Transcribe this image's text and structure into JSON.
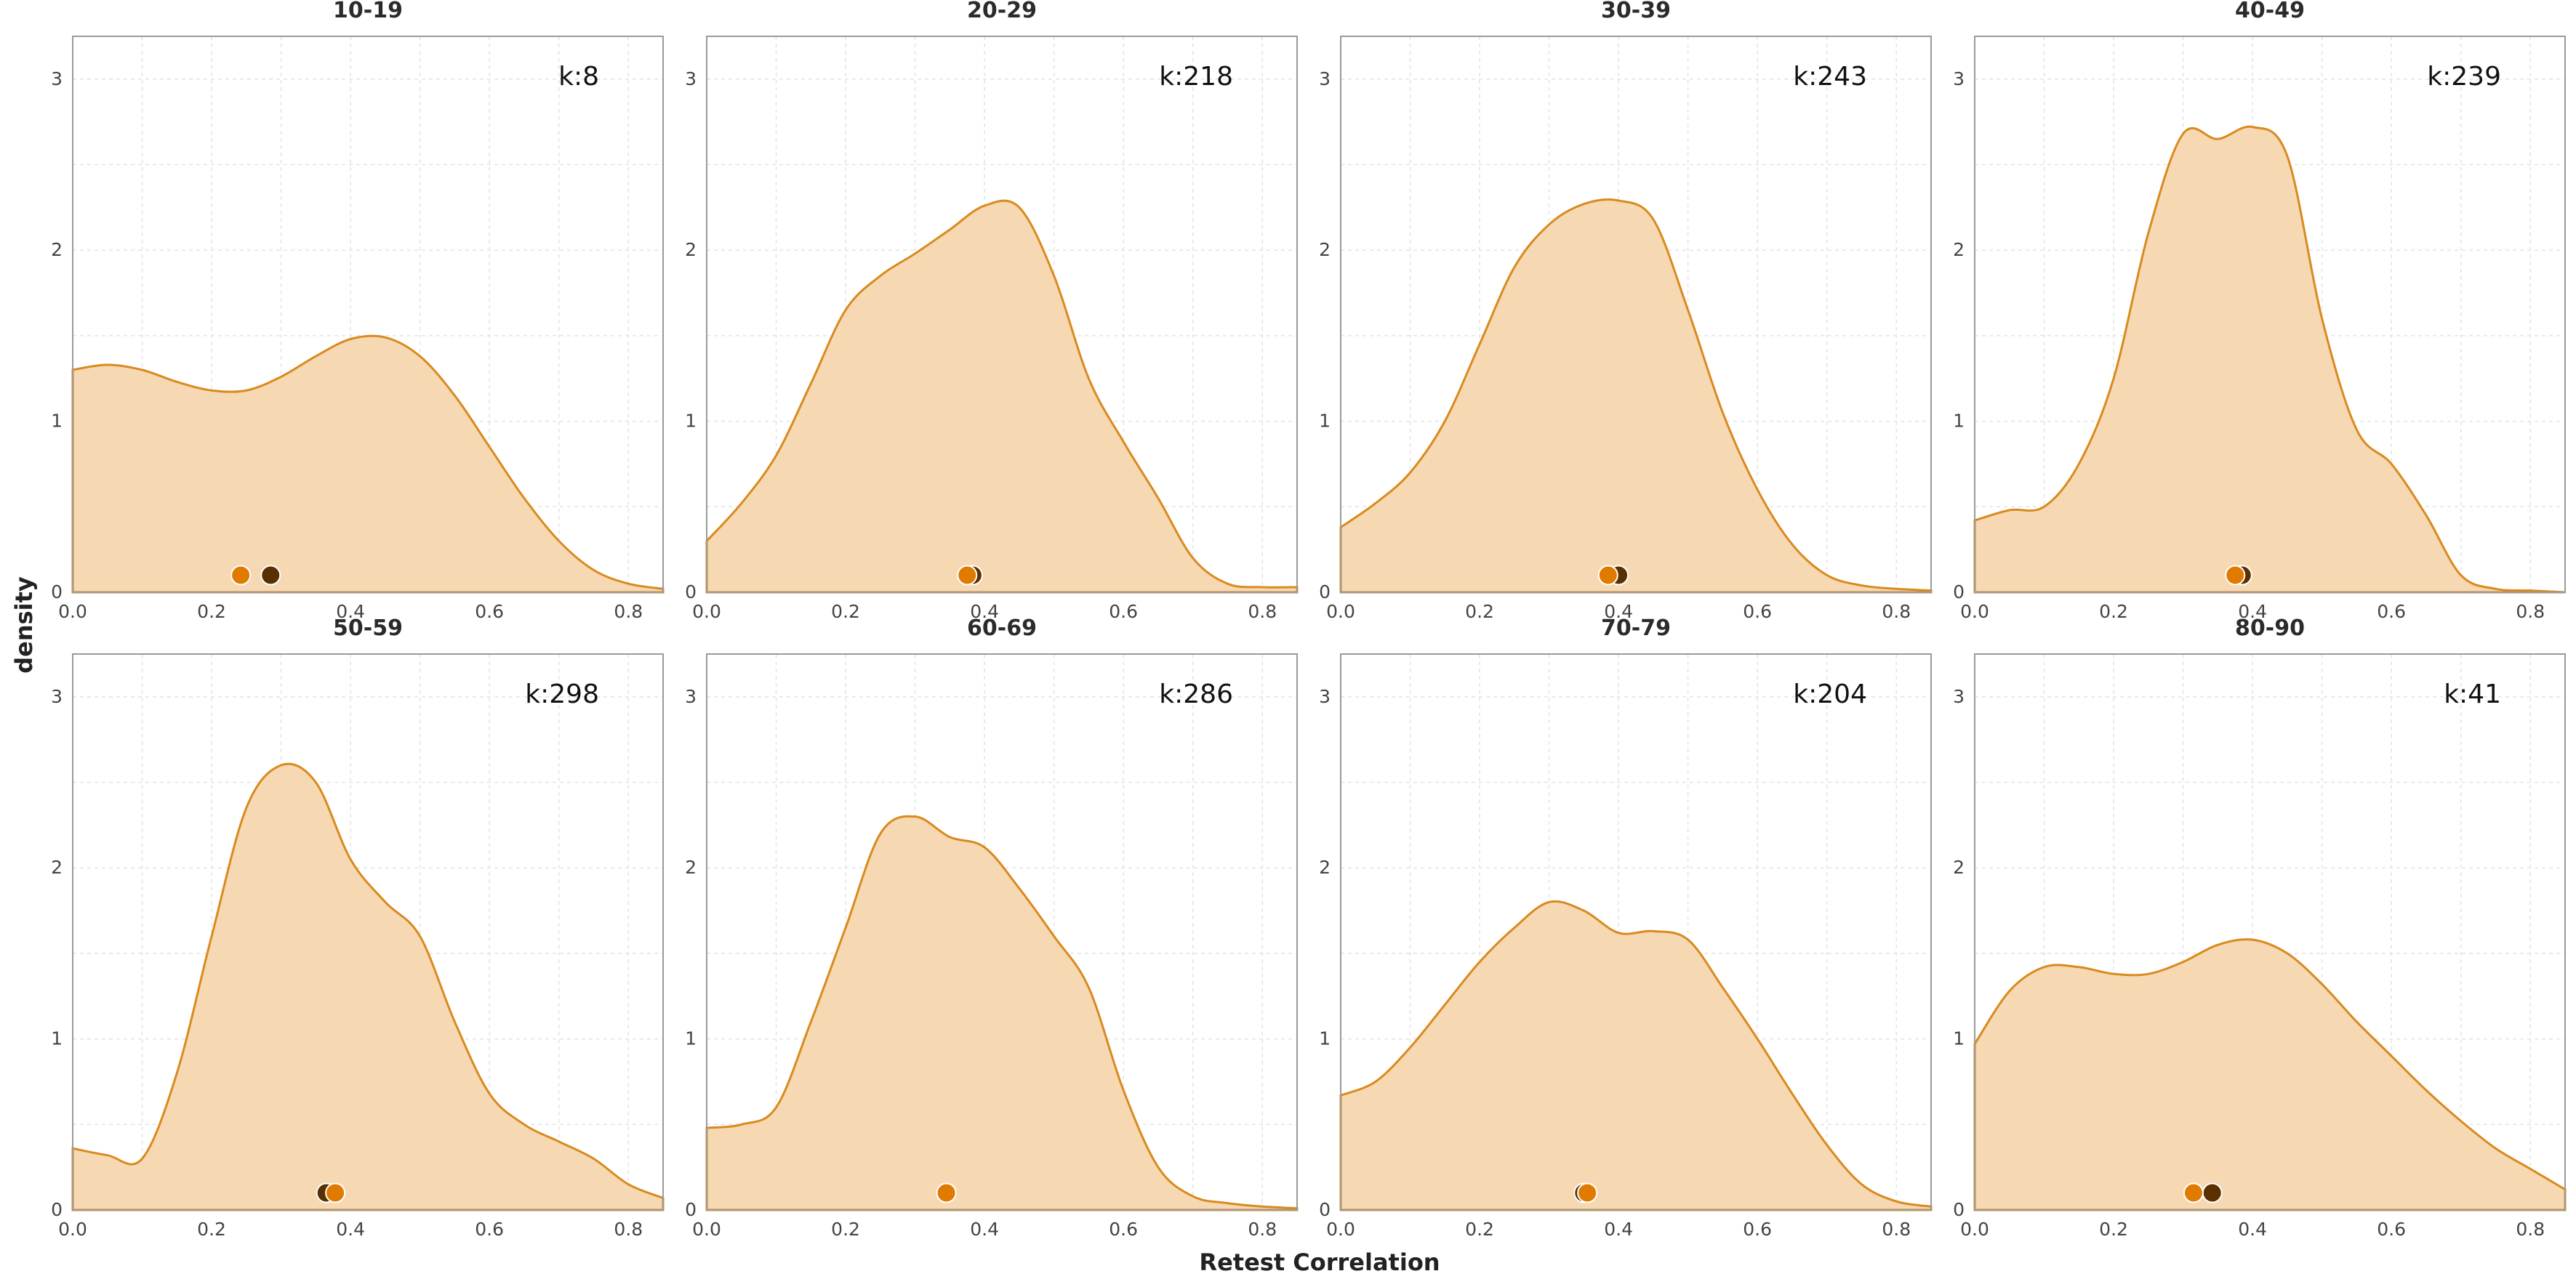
{
  "chart_data": {
    "type": "area",
    "layout": "facet-grid-2x4",
    "xlabel": "Retest Correlation",
    "ylabel": "density",
    "xlim": [
      0,
      0.85
    ],
    "ylim": [
      0,
      3.25
    ],
    "x_ticks": [
      "0.0",
      "0.2",
      "0.4",
      "0.6",
      "0.8"
    ],
    "y_ticks": [
      "0",
      "1",
      "2",
      "3"
    ],
    "grid": true,
    "colors": {
      "fill": "#f6d8b2",
      "line": "#d98a1e",
      "point_light": "#e07b00",
      "point_dark": "#5a3000"
    },
    "x_grid": [
      0.0,
      0.05,
      0.1,
      0.15,
      0.2,
      0.25,
      0.3,
      0.35,
      0.4,
      0.45,
      0.5,
      0.55,
      0.6,
      0.65,
      0.7,
      0.75,
      0.8,
      0.85
    ],
    "panels": [
      {
        "title": "10-19",
        "k_label": "k:8",
        "density": [
          1.3,
          1.33,
          1.3,
          1.23,
          1.18,
          1.18,
          1.26,
          1.38,
          1.48,
          1.49,
          1.38,
          1.15,
          0.85,
          0.55,
          0.3,
          0.13,
          0.05,
          0.02
        ],
        "points": {
          "dark": 0.285,
          "light": 0.242
        }
      },
      {
        "title": "20-29",
        "k_label": "k:218",
        "density": [
          0.3,
          0.52,
          0.8,
          1.22,
          1.65,
          1.85,
          1.98,
          2.12,
          2.26,
          2.25,
          1.85,
          1.25,
          0.88,
          0.55,
          0.2,
          0.05,
          0.03,
          0.03
        ],
        "points": {
          "dark": 0.383,
          "light": 0.375
        }
      },
      {
        "title": "30-39",
        "k_label": "k:243",
        "density": [
          0.38,
          0.52,
          0.7,
          1.0,
          1.45,
          1.9,
          2.15,
          2.27,
          2.29,
          2.18,
          1.65,
          1.05,
          0.6,
          0.28,
          0.1,
          0.04,
          0.02,
          0.01
        ],
        "points": {
          "dark": 0.4,
          "light": 0.385
        }
      },
      {
        "title": "40-49",
        "k_label": "k:239",
        "density": [
          0.42,
          0.48,
          0.5,
          0.75,
          1.25,
          2.1,
          2.68,
          2.65,
          2.72,
          2.55,
          1.6,
          0.95,
          0.75,
          0.45,
          0.1,
          0.02,
          0.01,
          0.0
        ],
        "points": {
          "dark": 0.385,
          "light": 0.375
        }
      },
      {
        "title": "50-59",
        "k_label": "k:298",
        "density": [
          0.36,
          0.32,
          0.3,
          0.8,
          1.6,
          2.35,
          2.6,
          2.5,
          2.05,
          1.8,
          1.6,
          1.1,
          0.68,
          0.5,
          0.4,
          0.3,
          0.15,
          0.07
        ],
        "points": {
          "dark": 0.365,
          "light": 0.378
        }
      },
      {
        "title": "60-69",
        "k_label": "k:286",
        "density": [
          0.48,
          0.5,
          0.6,
          1.1,
          1.65,
          2.2,
          2.3,
          2.18,
          2.12,
          1.88,
          1.6,
          1.3,
          0.7,
          0.25,
          0.08,
          0.04,
          0.02,
          0.01
        ],
        "points": {
          "dark": 0.345,
          "light": 0.345
        }
      },
      {
        "title": "70-79",
        "k_label": "k:204",
        "density": [
          0.67,
          0.75,
          0.95,
          1.2,
          1.45,
          1.65,
          1.8,
          1.75,
          1.62,
          1.63,
          1.58,
          1.3,
          1.0,
          0.68,
          0.38,
          0.15,
          0.05,
          0.02
        ],
        "points": {
          "dark": 0.35,
          "light": 0.355
        }
      },
      {
        "title": "80-90",
        "k_label": "k:41",
        "density": [
          0.97,
          1.28,
          1.42,
          1.42,
          1.38,
          1.38,
          1.45,
          1.55,
          1.58,
          1.5,
          1.32,
          1.1,
          0.9,
          0.7,
          0.52,
          0.36,
          0.24,
          0.12
        ],
        "points": {
          "dark": 0.342,
          "light": 0.315
        }
      }
    ]
  }
}
